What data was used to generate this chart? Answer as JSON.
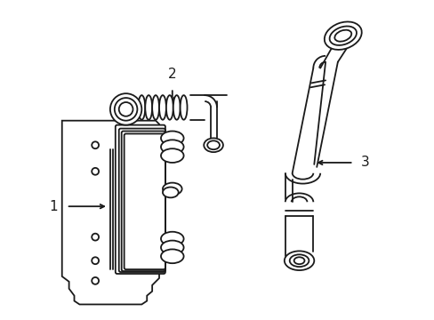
{
  "background_color": "#ffffff",
  "line_color": "#1a1a1a",
  "line_width": 1.3,
  "label_1": "1",
  "label_2": "2",
  "label_3": "3",
  "fig_width": 4.89,
  "fig_height": 3.6,
  "dpi": 100
}
